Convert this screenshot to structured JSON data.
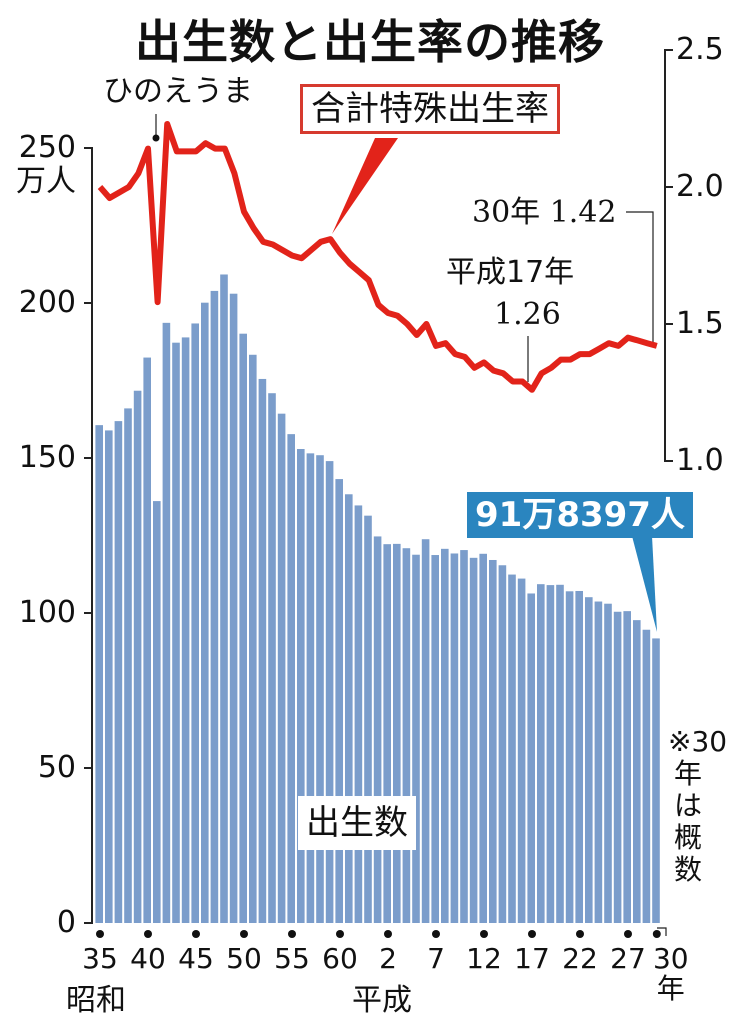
{
  "title": "出生数と出生率の推移",
  "annotations": {
    "hinoeuma": "ひのえうま",
    "tfr_label": "合計特殊出生率",
    "tfr_2018": "30年 1.42",
    "tfr_2005_year": "平成17年",
    "tfr_2005_value": "1.26",
    "births_2018_callout": "91万8397人",
    "births_label": "出生数",
    "note": "※30年は概数"
  },
  "axes": {
    "left_unit": "万人",
    "left_ticks": [
      "250",
      "200",
      "150",
      "100",
      "50",
      "0"
    ],
    "right_ticks": [
      "2.5",
      "2.0",
      "1.5",
      "1.0"
    ],
    "x_ticks": [
      "35",
      "40",
      "45",
      "50",
      "55",
      "60",
      "2",
      "7",
      "12",
      "17",
      "22",
      "27",
      "30年"
    ],
    "era_showa": "昭和",
    "era_heisei": "平成"
  },
  "colors": {
    "bar": "#7b9dcb",
    "line": "#e2231a",
    "callout": "#2a85bf",
    "tfr_box_border": "#d63a2f"
  },
  "chart_data": {
    "type": "bar+line",
    "title": "出生数と出生率の推移",
    "x": [
      1960,
      1961,
      1962,
      1963,
      1964,
      1965,
      1966,
      1967,
      1968,
      1969,
      1970,
      1971,
      1972,
      1973,
      1974,
      1975,
      1976,
      1977,
      1978,
      1979,
      1980,
      1981,
      1982,
      1983,
      1984,
      1985,
      1986,
      1987,
      1988,
      1989,
      1990,
      1991,
      1992,
      1993,
      1994,
      1995,
      1996,
      1997,
      1998,
      1999,
      2000,
      2001,
      2002,
      2003,
      2004,
      2005,
      2006,
      2007,
      2008,
      2009,
      2010,
      2011,
      2012,
      2013,
      2014,
      2015,
      2016,
      2017,
      2018
    ],
    "series": [
      {
        "name": "出生数",
        "type": "bar",
        "axis": "left",
        "unit": "万人",
        "values": [
          160.6,
          158.9,
          161.9,
          166.0,
          171.7,
          182.4,
          136.1,
          193.6,
          187.2,
          188.9,
          193.4,
          200.1,
          203.9,
          209.2,
          203.0,
          190.1,
          183.3,
          175.5,
          170.9,
          164.3,
          157.7,
          152.9,
          151.5,
          150.9,
          149.0,
          143.2,
          138.3,
          134.7,
          131.4,
          124.7,
          122.2,
          122.3,
          120.9,
          118.8,
          123.8,
          118.7,
          120.7,
          119.2,
          120.3,
          117.8,
          119.1,
          117.1,
          115.4,
          112.4,
          111.1,
          106.3,
          109.3,
          109.0,
          109.1,
          107.0,
          107.1,
          105.1,
          103.7,
          103.0,
          100.4,
          100.6,
          97.7,
          94.6,
          91.8
        ]
      },
      {
        "name": "合計特殊出生率",
        "type": "line",
        "axis": "right",
        "values": [
          2.0,
          1.96,
          1.98,
          2.0,
          2.05,
          2.14,
          1.58,
          2.23,
          2.13,
          2.13,
          2.13,
          2.16,
          2.14,
          2.14,
          2.05,
          1.91,
          1.85,
          1.8,
          1.79,
          1.77,
          1.75,
          1.74,
          1.77,
          1.8,
          1.81,
          1.76,
          1.72,
          1.69,
          1.66,
          1.57,
          1.54,
          1.53,
          1.5,
          1.46,
          1.5,
          1.42,
          1.43,
          1.39,
          1.38,
          1.34,
          1.36,
          1.33,
          1.32,
          1.29,
          1.29,
          1.26,
          1.32,
          1.34,
          1.37,
          1.37,
          1.39,
          1.39,
          1.41,
          1.43,
          1.42,
          1.45,
          1.44,
          1.43,
          1.42
        ]
      }
    ],
    "ylim_left": [
      0,
      250
    ],
    "ylim_right": [
      1.0,
      2.5
    ],
    "xlabel": "",
    "ylabel_left": "万人",
    "grid": false
  }
}
